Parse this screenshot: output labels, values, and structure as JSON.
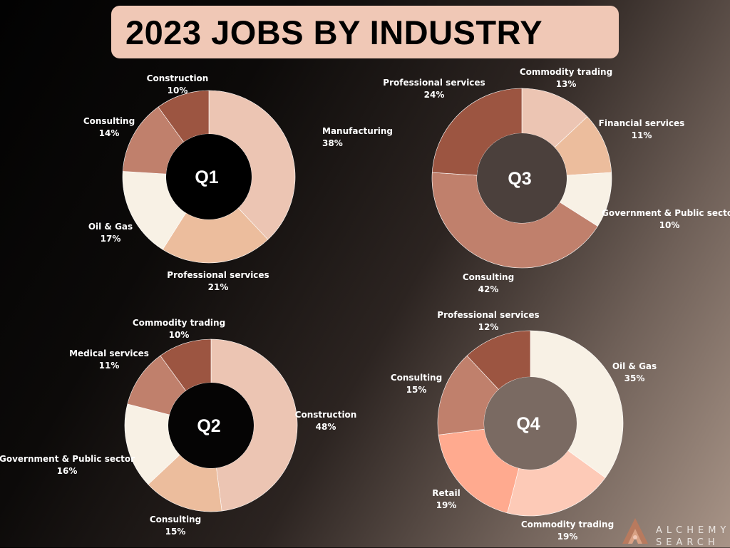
{
  "title": "2023 JOBS BY INDUSTRY",
  "brand": {
    "line1": "ALCHEMY",
    "line2": "SEARCH",
    "logo_icon": "alchemy-search-logo"
  },
  "colors": {
    "title_bg": "#f0c8b6",
    "label_text": "#ffffff",
    "center_text": "#ffffff"
  },
  "chart_data": [
    {
      "type": "pie",
      "variant": "donut",
      "center_label": "Q1",
      "categories": [
        "Manufacturing",
        "Professional services",
        "Oil & Gas",
        "Consulting",
        "Construction"
      ],
      "values": [
        38,
        21,
        17,
        14,
        10
      ],
      "value_labels": [
        "38%",
        "21%",
        "17%",
        "14%",
        "10%"
      ],
      "colors": [
        "#ecc5b3",
        "#ecbd9d",
        "#f8f1e5",
        "#c0806c",
        "#9c5541"
      ]
    },
    {
      "type": "pie",
      "variant": "donut",
      "center_label": "Q2",
      "categories": [
        "Construction",
        "Consulting",
        "Government & Public sector",
        "Medical services",
        "Commodity trading"
      ],
      "values": [
        48,
        15,
        16,
        11,
        10
      ],
      "value_labels": [
        "48%",
        "15%",
        "16%",
        "11%",
        "10%"
      ],
      "colors": [
        "#ecc5b3",
        "#ecbd9d",
        "#f8f1e5",
        "#c0806c",
        "#9c5541"
      ]
    },
    {
      "type": "pie",
      "variant": "donut",
      "center_label": "Q3",
      "categories": [
        "Commodity trading",
        "Financial services",
        "Government & Public sector",
        "Consulting",
        "Professional services"
      ],
      "values": [
        13,
        11,
        10,
        42,
        24
      ],
      "value_labels": [
        "13%",
        "11%",
        "10%",
        "42%",
        "24%"
      ],
      "colors": [
        "#ecc5b3",
        "#ecbd9d",
        "#f8f1e5",
        "#c0806c",
        "#9c5541"
      ]
    },
    {
      "type": "pie",
      "variant": "donut",
      "center_label": "Q4",
      "categories": [
        "Oil & Gas",
        "Commodity trading",
        "Retail",
        "Consulting",
        "Professional services"
      ],
      "values": [
        35,
        19,
        19,
        15,
        12
      ],
      "value_labels": [
        "35%",
        "19%",
        "19%",
        "15%",
        "12%"
      ],
      "colors": [
        "#f8f1e5",
        "#fdcab7",
        "#ffaa8f",
        "#c0806c",
        "#9c5541"
      ]
    }
  ]
}
